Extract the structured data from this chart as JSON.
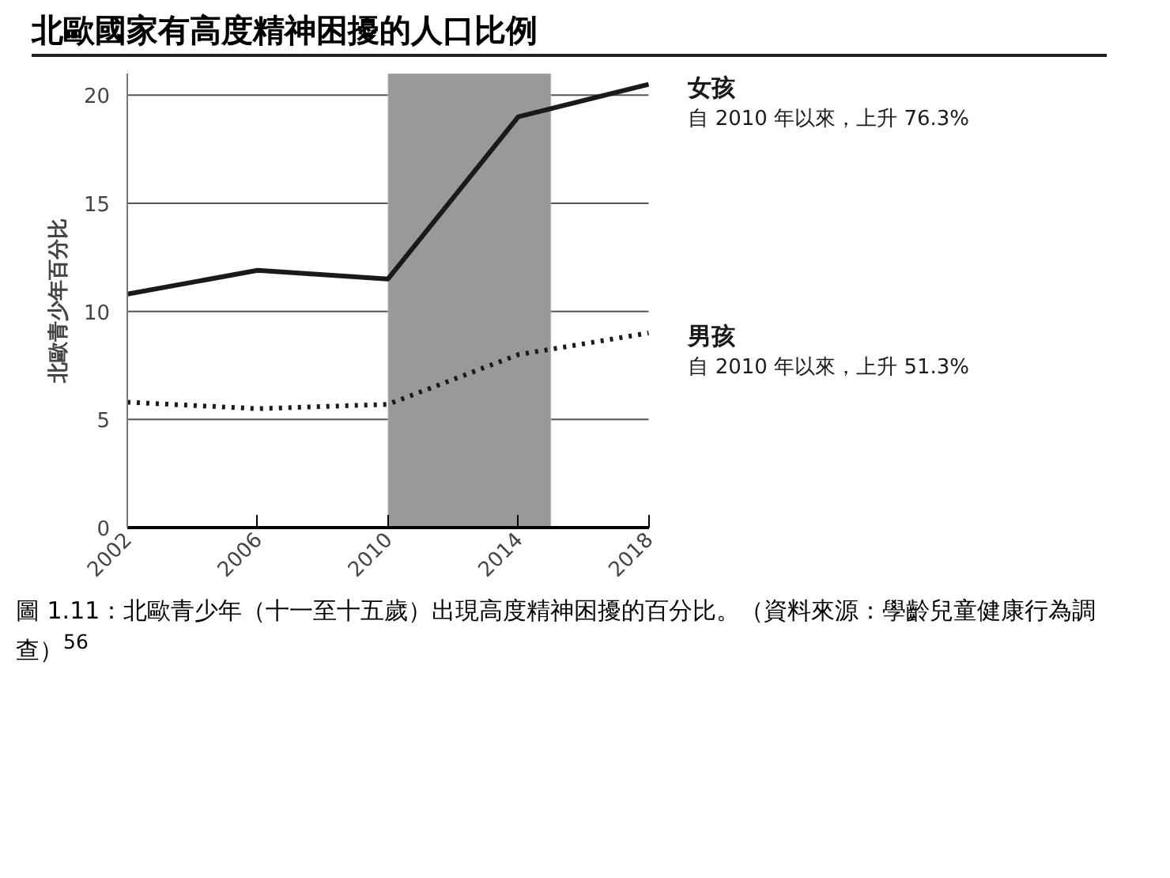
{
  "chart_data": {
    "type": "line",
    "title": "北歐國家有高度精神困擾的人口比例",
    "ylabel": "北歐青少年百分比",
    "x": [
      2002,
      2006,
      2010,
      2014,
      2018
    ],
    "series": [
      {
        "name": "女孩",
        "color": "#1a1a1a",
        "line_style": "solid",
        "values": [
          10.8,
          11.9,
          11.5,
          19.0,
          20.5
        ]
      },
      {
        "name": "男孩",
        "color": "#1a1a1a",
        "line_style": "dotted",
        "values": [
          5.8,
          5.5,
          5.7,
          8.0,
          9.0
        ]
      }
    ],
    "annotations": [
      {
        "text": "自 2010 年以來，上升 76.3%",
        "x": 2018,
        "y": 20.5
      },
      {
        "text": "自 2010 年以來，上升 51.3%",
        "x": 2018,
        "y": 9.0
      },
      "圖 1.11：北歐青少年（十一至十五歲）出現高度精神困擾的百分比。（資料來源：學齡兒童健康行為調查）$^{56}$"
    ],
    "bands": [
      {
        "axis": "x",
        "from": 2010,
        "to": 2015,
        "color": "#999999"
      }
    ],
    "xlim": [
      2002,
      2018
    ],
    "xticks": [
      2002,
      2006,
      2010,
      2014,
      2018
    ],
    "ylim": [
      0,
      21
    ],
    "yticks": [
      0,
      5,
      10,
      15,
      20
    ],
    "grid": "y",
    "marker": "none"
  }
}
